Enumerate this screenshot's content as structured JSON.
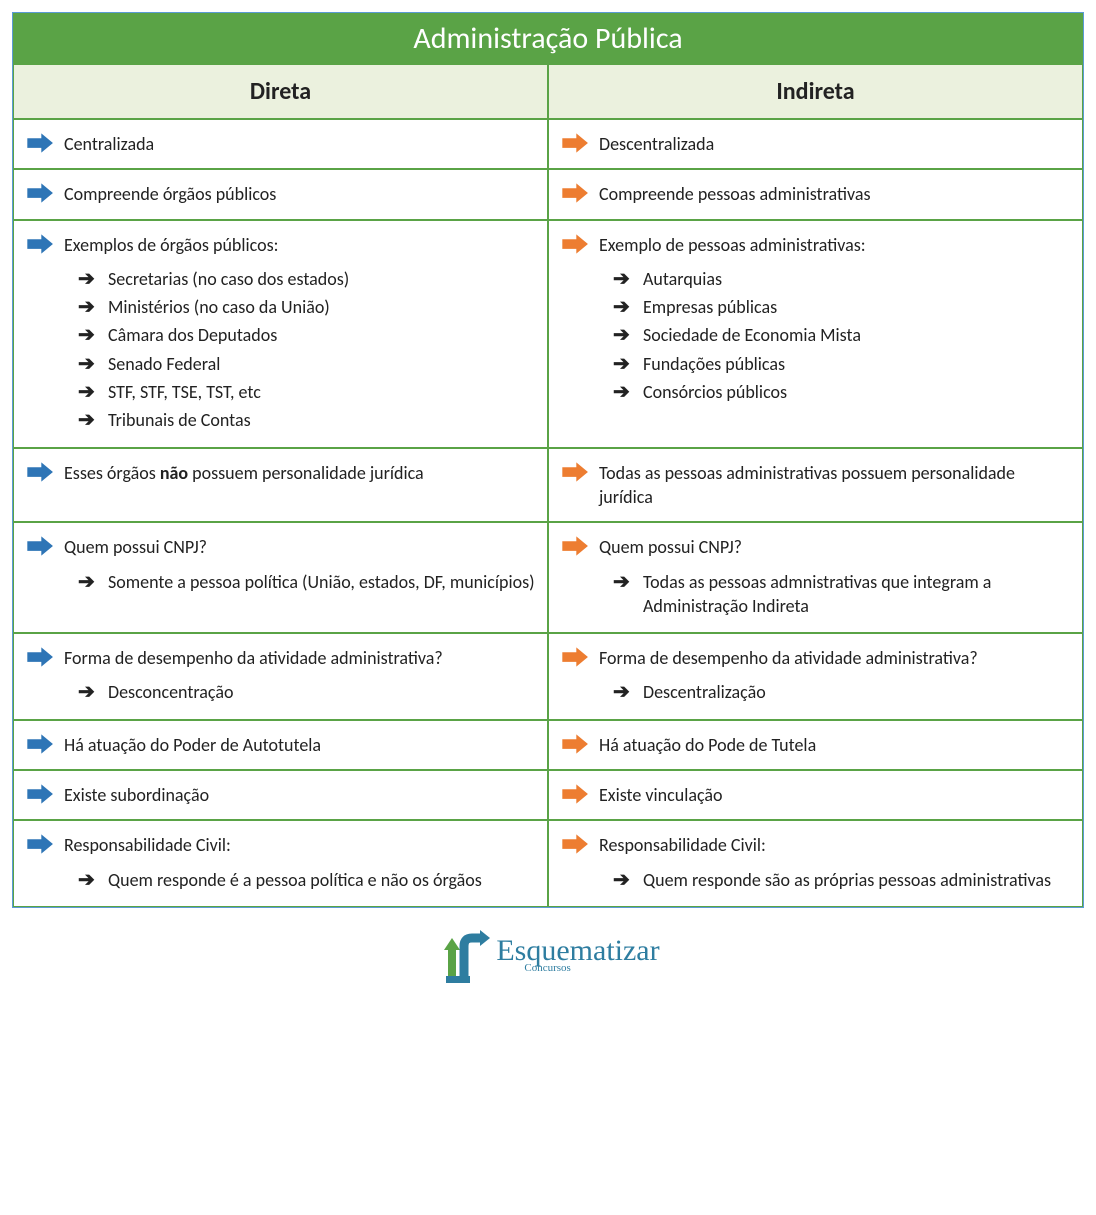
{
  "colors": {
    "header_bg": "#5aa346",
    "header_text": "#ffffff",
    "subheader_bg": "#ebf1de",
    "border": "#5aa346",
    "outer_border": "#5b9bd5",
    "arrow_left": "#2e75b6",
    "arrow_right": "#ed7d31",
    "sub_arrow": "#000000",
    "text": "#222222",
    "logo_color": "#2e7da0"
  },
  "title": "Administração Pública",
  "columns": [
    "Direta",
    "Indireta"
  ],
  "rows": [
    {
      "left": {
        "text": "Centralizada"
      },
      "right": {
        "text": "Descentralizada"
      }
    },
    {
      "left": {
        "text": "Compreende órgãos públicos"
      },
      "right": {
        "text": "Compreende pessoas administrativas"
      }
    },
    {
      "left": {
        "text": "Exemplos de órgãos públicos:",
        "subs": [
          "Secretarias (no caso dos estados)",
          "Ministérios (no caso da União)",
          "Câmara dos Deputados",
          "Senado Federal",
          "STF, STF, TSE, TST, etc",
          "Tribunais de Contas"
        ]
      },
      "right": {
        "text": "Exemplo de pessoas administrativas:",
        "subs": [
          "Autarquias",
          "Empresas públicas",
          "Sociedade de Economia Mista",
          "Fundações públicas",
          "Consórcios públicos"
        ]
      }
    },
    {
      "left": {
        "html": "Esses órgãos <b>não</b> possuem personalidade jurídica"
      },
      "right": {
        "text": "Todas as pessoas administrativas possuem personalidade jurídica"
      }
    },
    {
      "left": {
        "text": "Quem possui CNPJ?",
        "subs": [
          "Somente a pessoa política (União, estados, DF, municípios)"
        ]
      },
      "right": {
        "text": "Quem possui CNPJ?",
        "subs": [
          "Todas as pessoas admnistrativas que integram a Administração Indireta"
        ]
      }
    },
    {
      "left": {
        "text": "Forma de desempenho da atividade administrativa?",
        "subs": [
          "Desconcentração"
        ]
      },
      "right": {
        "text": "Forma de desempenho da atividade administrativa?",
        "subs": [
          "Descentralização"
        ]
      }
    },
    {
      "left": {
        "text": "Há atuação do Poder de Autotutela"
      },
      "right": {
        "text": "Há atuação do Pode de Tutela"
      }
    },
    {
      "left": {
        "text": "Existe subordinação"
      },
      "right": {
        "text": "Existe vinculação"
      }
    },
    {
      "left": {
        "text": "Responsabilidade Civil:",
        "subs": [
          "Quem responde é a pessoa política e não os órgãos"
        ]
      },
      "right": {
        "text": "Responsabilidade Civil:",
        "subs": [
          "Quem responde são as próprias pessoas administrativas"
        ]
      }
    }
  ],
  "logo": {
    "main": "Esquematizar",
    "sub": "Concursos"
  }
}
